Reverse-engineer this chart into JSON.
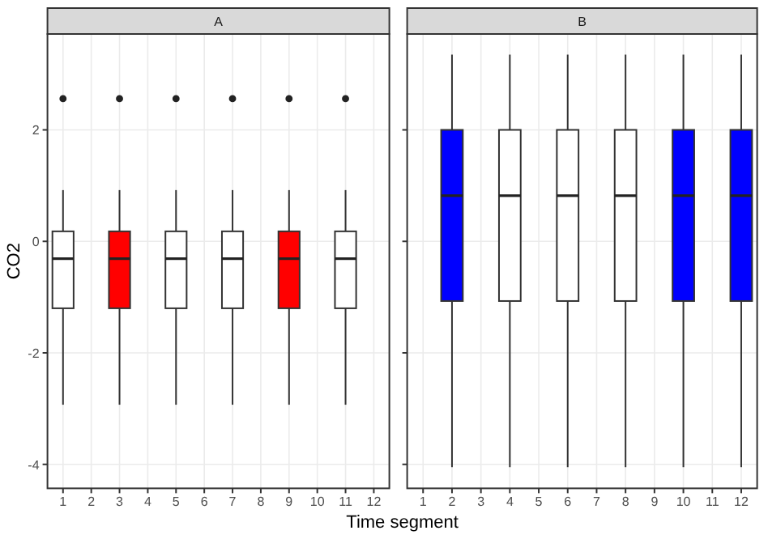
{
  "chart_data": [
    {
      "type": "box",
      "title": "A",
      "xlabel": "Time segment",
      "ylabel": "CO2",
      "x": [
        1,
        3,
        5,
        7,
        9,
        11
      ],
      "boxes": [
        {
          "low": -2.93,
          "q1": -1.2,
          "median": -0.31,
          "q3": 0.18,
          "high": 0.92,
          "outliers": [
            2.56
          ]
        },
        {
          "low": -2.93,
          "q1": -1.2,
          "median": -0.31,
          "q3": 0.18,
          "high": 0.92,
          "outliers": [
            2.56
          ]
        },
        {
          "low": -2.93,
          "q1": -1.2,
          "median": -0.31,
          "q3": 0.18,
          "high": 0.92,
          "outliers": [
            2.56
          ]
        },
        {
          "low": -2.93,
          "q1": -1.2,
          "median": -0.31,
          "q3": 0.18,
          "high": 0.92,
          "outliers": [
            2.56
          ]
        },
        {
          "low": -2.93,
          "q1": -1.2,
          "median": -0.31,
          "q3": 0.18,
          "high": 0.92,
          "outliers": [
            2.56
          ]
        },
        {
          "low": -2.93,
          "q1": -1.2,
          "median": -0.31,
          "q3": 0.18,
          "high": 0.92,
          "outliers": [
            2.56
          ]
        }
      ],
      "colors": [
        "#ffffff",
        "#ff0000",
        "#ffffff",
        "#ffffff",
        "#ff0000",
        "#ffffff"
      ],
      "xlim": [
        0.45,
        12.55
      ],
      "xticks": [
        1,
        2,
        3,
        4,
        5,
        6,
        7,
        8,
        9,
        10,
        11,
        12
      ],
      "ylim": [
        -4.43,
        3.72
      ],
      "yticks": [
        -4,
        -2,
        0,
        2
      ],
      "grid": true
    },
    {
      "type": "box",
      "title": "B",
      "x": [
        2,
        4,
        6,
        8,
        10,
        12
      ],
      "boxes": [
        {
          "low": -4.05,
          "q1": -1.07,
          "median": 0.82,
          "q3": 2.0,
          "high": 3.35
        },
        {
          "low": -4.05,
          "q1": -1.07,
          "median": 0.82,
          "q3": 2.0,
          "high": 3.35
        },
        {
          "low": -4.05,
          "q1": -1.07,
          "median": 0.82,
          "q3": 2.0,
          "high": 3.35
        },
        {
          "low": -4.05,
          "q1": -1.07,
          "median": 0.82,
          "q3": 2.0,
          "high": 3.35
        },
        {
          "low": -4.05,
          "q1": -1.07,
          "median": 0.82,
          "q3": 2.0,
          "high": 3.35
        },
        {
          "low": -4.05,
          "q1": -1.07,
          "median": 0.82,
          "q3": 2.0,
          "high": 3.35
        }
      ],
      "colors": [
        "#0000ff",
        "#ffffff",
        "#ffffff",
        "#ffffff",
        "#0000ff",
        "#0000ff"
      ],
      "xlim": [
        0.45,
        12.55
      ],
      "xticks": [
        1,
        2,
        3,
        4,
        5,
        6,
        7,
        8,
        9,
        10,
        11,
        12
      ],
      "ylim": [
        -4.43,
        3.72
      ],
      "yticks": [
        -4,
        -2,
        0,
        2
      ],
      "grid": true,
      "tick_labels": "x"
    }
  ]
}
